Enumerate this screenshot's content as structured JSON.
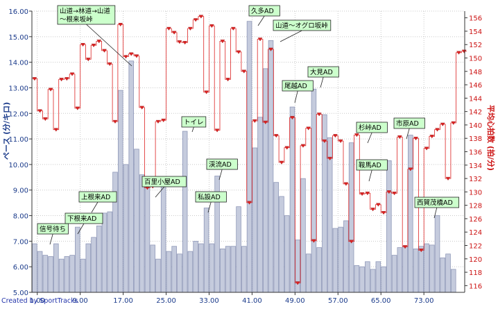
{
  "chart_data": {
    "type": "bar",
    "title": "",
    "left_axis": {
      "label": "ペース (分/キロ)",
      "min": 5.0,
      "max": 16.0,
      "step": 1.0,
      "tick_labels": [
        "5.00",
        "6.00",
        "7.00",
        "8.00",
        "9.00",
        "10.00",
        "11.00",
        "12.00",
        "13.00",
        "14.00",
        "15.00",
        "16.00"
      ],
      "color": "#1a3a8a"
    },
    "right_axis": {
      "label": "平均心拍数 (拍/分)",
      "min": 115,
      "max": 157,
      "step": 2,
      "tick_labels": [
        "116",
        "118",
        "120",
        "122",
        "124",
        "126",
        "128",
        "130",
        "132",
        "134",
        "136",
        "138",
        "140",
        "142",
        "144",
        "146",
        "148",
        "150",
        "152",
        "154",
        "156"
      ],
      "color": "#cc1111"
    },
    "x_axis": {
      "min": 0,
      "max": 80.6,
      "tick_values": [
        1,
        9,
        17,
        25,
        33,
        41,
        49,
        57,
        65,
        73
      ],
      "tick_labels": [
        "1.00",
        "9.00",
        "17.00",
        "25.00",
        "33.00",
        "41.00",
        "49.00",
        "57.00",
        "65.00",
        "73.00"
      ]
    },
    "grid": true,
    "series": [
      {
        "kind": "bar",
        "axis": "left",
        "color": "#c5cbdd",
        "values": [
          6.9,
          6.6,
          6.45,
          6.4,
          6.9,
          6.3,
          6.4,
          6.45,
          7.55,
          6.3,
          6.9,
          7.15,
          7.6,
          8.1,
          8.15,
          9.7,
          12.9,
          10.0,
          14.05,
          10.6,
          9.6,
          9.15,
          6.85,
          6.3,
          9.2,
          6.6,
          6.8,
          6.5,
          11.3,
          6.6,
          7.0,
          6.9,
          8.3,
          6.9,
          9.55,
          6.7,
          6.8,
          6.8,
          8.35,
          6.8,
          15.6,
          10.65,
          11.85,
          13.75,
          14.85,
          9.3,
          8.75,
          8.0,
          12.25,
          7.05,
          9.45,
          6.5,
          12.95,
          6.75,
          11.95,
          11.05,
          7.5,
          7.55,
          7.8,
          10.85,
          6.05,
          6.0,
          6.2,
          5.9,
          6.2,
          6.0,
          10.15,
          6.45,
          6.75,
          6.8,
          11.15,
          6.7,
          6.8,
          6.9,
          6.85,
          8.0,
          6.35,
          6.5,
          5.9
        ]
      },
      {
        "kind": "step-marker",
        "axis": "right",
        "color": "#dd2222",
        "values": [
          146.9,
          142.1,
          140.9,
          145.3,
          139.3,
          146.8,
          146.9,
          147.6,
          142.5,
          152,
          149.8,
          151.9,
          152.5,
          151.1,
          149.1,
          140.5,
          155,
          150.2,
          150.6,
          150.3,
          142.6,
          130.6,
          130.8,
          140.5,
          140.7,
          154.4,
          153.8,
          152.4,
          152.3,
          154.4,
          155.7,
          156.2,
          144.9,
          154.8,
          139.2,
          152.5,
          146.8,
          154.4,
          150.9,
          148,
          128.4,
          140.6,
          152.8,
          140.4,
          151.3,
          138.4,
          134.4,
          136.6,
          141.1,
          116.4,
          136.9,
          139.5,
          122.7,
          141.6,
          137.6,
          135,
          138.4,
          137.6,
          131.2,
          122.6,
          138.5,
          129.7,
          129.8,
          127.4,
          128.1,
          126.9,
          130,
          129.8,
          138.2,
          121.8,
          133.4,
          138,
          121.3,
          136.5,
          138.3,
          139.3,
          140.1,
          132,
          140.3,
          150.8,
          151
        ]
      }
    ],
    "annotations": [
      {
        "text": "信号待ち"
      },
      {
        "text": "下根来AD"
      },
      {
        "text": "上根来AD"
      },
      {
        "text": "山道→林道→山道\n～根来坂峠"
      },
      {
        "text": "百里小屋AD"
      },
      {
        "text": "トイレ"
      },
      {
        "text": "私設AD"
      },
      {
        "text": "渓流AD"
      },
      {
        "text": "久多AD"
      },
      {
        "text": "山道～オグロ坂峠"
      },
      {
        "text": "尾越AD"
      },
      {
        "text": "大見AD"
      },
      {
        "text": "杉峠AD"
      },
      {
        "text": "鞍馬AD"
      },
      {
        "text": "市原AD"
      },
      {
        "text": "西賀茂橋AD"
      }
    ]
  },
  "credit": "Created by SportTracks"
}
